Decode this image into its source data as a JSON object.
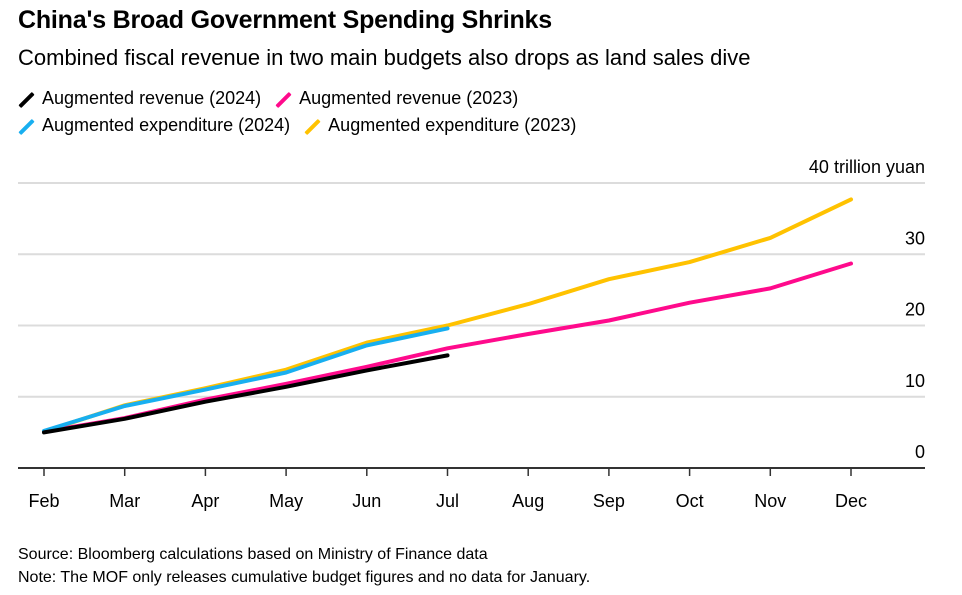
{
  "header": {
    "title": "China's Broad Government Spending Shrinks",
    "subtitle": "Combined fiscal revenue in two main budgets also drops as land sales dive"
  },
  "legend": [
    {
      "label": "Augmented revenue (2024)",
      "color": "#000000"
    },
    {
      "label": "Augmented revenue (2023)",
      "color": "#ff0a8c"
    },
    {
      "label": "Augmented expenditure (2024)",
      "color": "#18aff0"
    },
    {
      "label": "Augmented expenditure (2023)",
      "color": "#ffc200"
    }
  ],
  "footer": {
    "source": "Source: Bloomberg calculations based on Ministry of Finance data",
    "note": "Note: The MOF only releases cumulative budget figures and no data for January."
  },
  "chart_data": {
    "type": "line",
    "title": "China's Broad Government Spending Shrinks",
    "subtitle": "Combined fiscal revenue in two main budgets also drops as land sales dive",
    "xlabel": "",
    "ylabel": "trillion yuan",
    "y_unit_label": "40 trillion yuan",
    "x": [
      "Feb",
      "Mar",
      "Apr",
      "May",
      "Jun",
      "Jul",
      "Aug",
      "Sep",
      "Oct",
      "Nov",
      "Dec"
    ],
    "ylim": [
      0,
      40
    ],
    "yticks": [
      0,
      10,
      20,
      30,
      40
    ],
    "ytick_labels": [
      "0",
      "10",
      "20",
      "30",
      "40 trillion yuan"
    ],
    "y_axis_side": "right",
    "grid": true,
    "legend_position": "top-left",
    "series": [
      {
        "name": "Augmented expenditure (2023)",
        "color": "#ffc200",
        "values": [
          5.1,
          8.8,
          11.2,
          13.8,
          17.6,
          20.0,
          23.0,
          26.5,
          28.9,
          32.3,
          37.7
        ]
      },
      {
        "name": "Augmented revenue (2023)",
        "color": "#ff0a8c",
        "values": [
          5.1,
          7.0,
          9.6,
          11.8,
          14.2,
          16.8,
          18.8,
          20.7,
          23.2,
          25.2,
          28.7
        ]
      },
      {
        "name": "Augmented expenditure (2024)",
        "color": "#18aff0",
        "values": [
          5.2,
          8.7,
          11.0,
          13.4,
          17.2,
          19.6,
          null,
          null,
          null,
          null,
          null
        ]
      },
      {
        "name": "Augmented revenue (2024)",
        "color": "#000000",
        "values": [
          5.0,
          6.9,
          9.3,
          11.4,
          13.7,
          15.8,
          null,
          null,
          null,
          null,
          null
        ]
      }
    ]
  }
}
